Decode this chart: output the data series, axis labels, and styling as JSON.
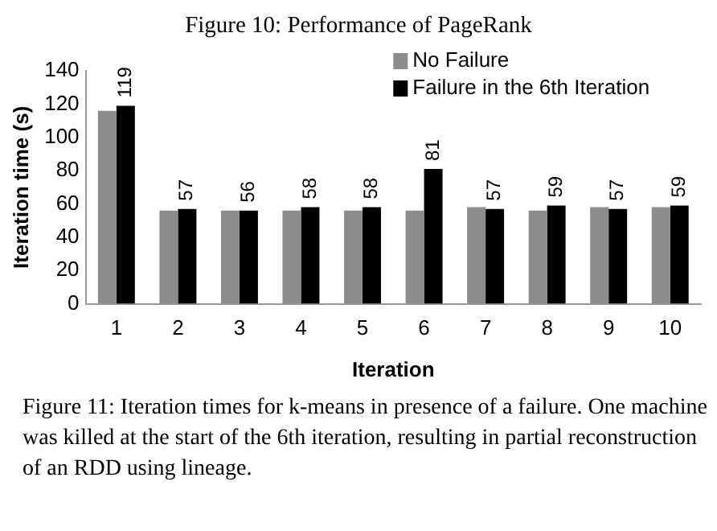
{
  "chart_data": {
    "type": "bar",
    "title": "Figure 10: Performance of PageRank",
    "xlabel": "Iteration",
    "ylabel": "Iteration time (s)",
    "categories": [
      "1",
      "2",
      "3",
      "4",
      "5",
      "6",
      "7",
      "8",
      "9",
      "10"
    ],
    "series": [
      {
        "name": "No Failure",
        "color": "#8c8c8c",
        "values": [
          116,
          56,
          56,
          56,
          56,
          56,
          58,
          56,
          58,
          58
        ]
      },
      {
        "name": "Failure in the 6th Iteration",
        "color": "#000000",
        "values": [
          119,
          57,
          56,
          58,
          58,
          81,
          57,
          59,
          57,
          59
        ],
        "value_labels": [
          "119",
          "57",
          "56",
          "58",
          "58",
          "81",
          "57",
          "59",
          "57",
          "59"
        ]
      }
    ],
    "ylim": [
      0,
      140
    ],
    "yticks": [
      0,
      20,
      40,
      60,
      80,
      100,
      120,
      140
    ],
    "grid": false,
    "legend": "top right",
    "annotations": [
      "Figure 11: Iteration times for k-means in presence of a failure. One machine was killed at the start of the 6th iteration, resulting in partial reconstruction of an RDD using lineage."
    ]
  }
}
